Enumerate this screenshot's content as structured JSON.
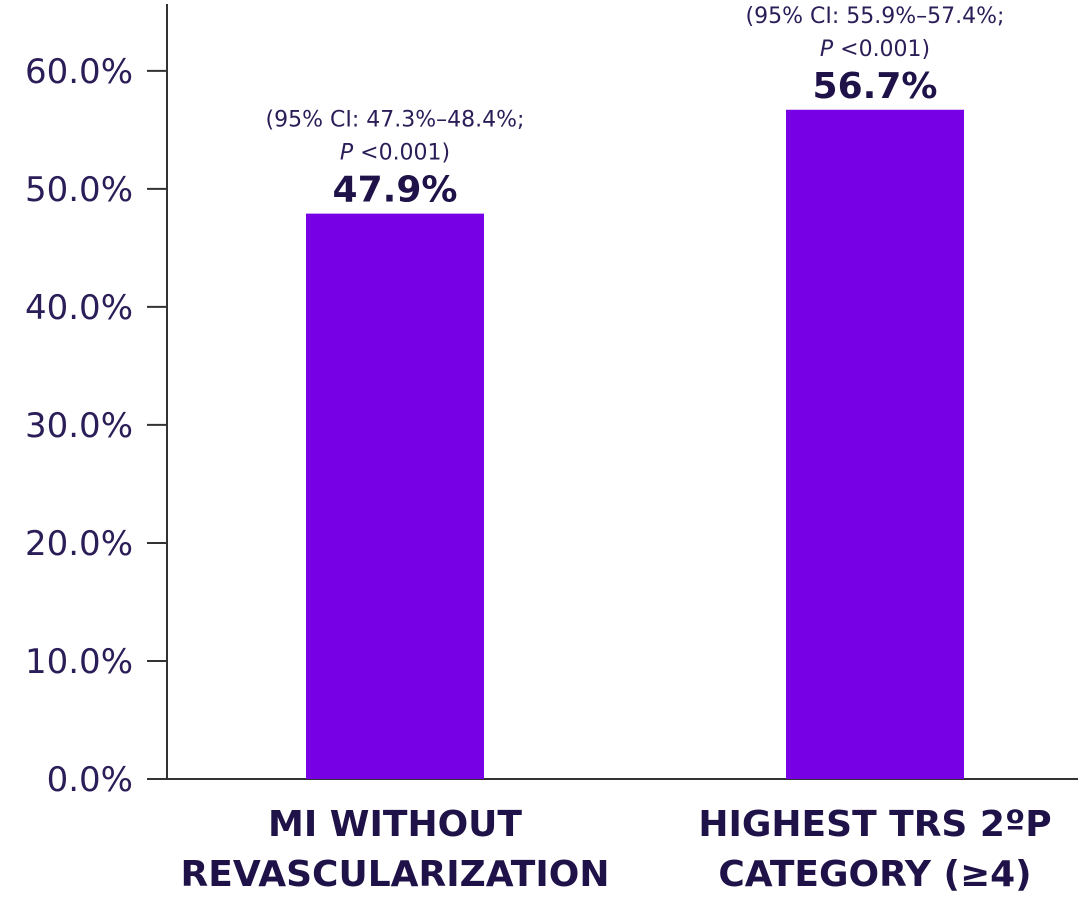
{
  "chart_data": {
    "type": "bar",
    "title": "",
    "xlabel": "",
    "ylabel": "",
    "ylim": [
      0,
      66
    ],
    "yticks": [
      0,
      10,
      20,
      30,
      40,
      50,
      60
    ],
    "ytick_labels": [
      "0.0%",
      "10.0%",
      "20.0%",
      "30.0%",
      "40.0%",
      "50.0%",
      "60.0%"
    ],
    "grid": false,
    "bar_color": "#7700e5",
    "categories": [
      [
        "MI WITHOUT",
        "REVASCULARIZATION"
      ],
      [
        "HIGHEST TRS 2ºP",
        "CATEGORY (≥4)"
      ]
    ],
    "values": [
      47.9,
      56.7
    ],
    "value_labels": [
      "47.9%",
      "56.7%"
    ],
    "ci_labels": [
      {
        "line1": "(95% CI: 47.3%–48.4%;",
        "p": "P",
        "line2": " <0.001)"
      },
      {
        "line1": "(95% CI: 55.9%–57.4%;",
        "p": "P",
        "line2": " <0.001)"
      }
    ]
  }
}
